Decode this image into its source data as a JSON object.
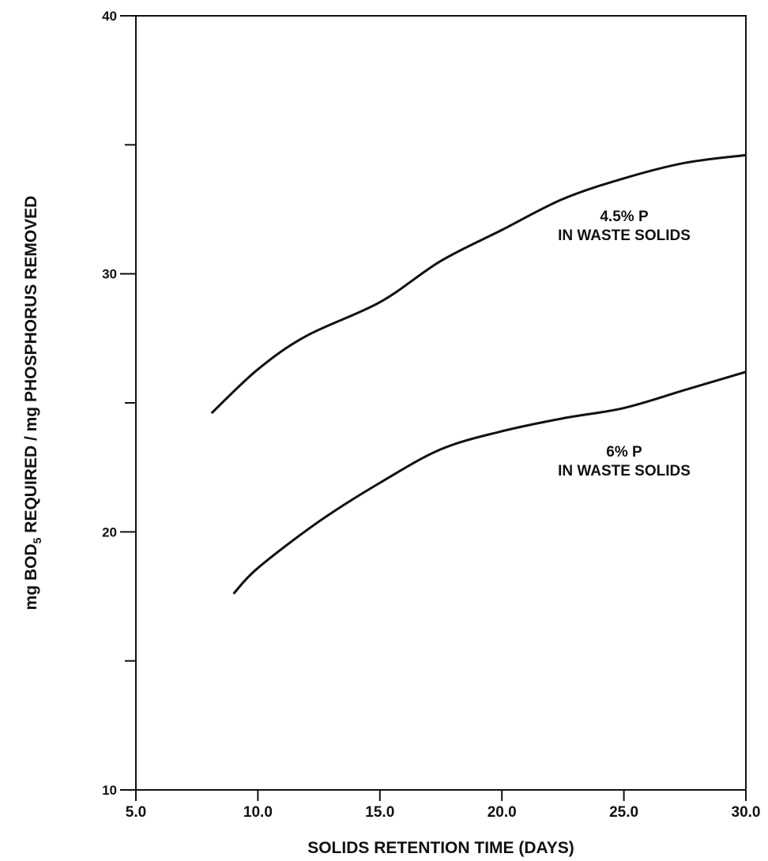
{
  "chart_data": {
    "type": "line",
    "x_label": "SOLIDS RETENTION TIME (DAYS)",
    "y_label_parts": [
      "mg BOD",
      "5",
      " REQUIRED / mg PHOSPHORUS REMOVED"
    ],
    "xlim": [
      5,
      30
    ],
    "xticks": [
      {
        "value": 5,
        "label": "5.0"
      },
      {
        "value": 10,
        "label": "10.0"
      },
      {
        "value": 15,
        "label": "15.0"
      },
      {
        "value": 20,
        "label": "20.0"
      },
      {
        "value": 25,
        "label": "25.0"
      },
      {
        "value": 30,
        "label": "30.0"
      }
    ],
    "ylim": [
      10,
      40
    ],
    "yticks": [
      10,
      20,
      30,
      40
    ],
    "yminorticks": [
      15,
      25,
      35
    ],
    "series": [
      {
        "name": "4.5% P",
        "label_lines": [
          "4.5% P",
          "IN WASTE SOLIDS"
        ],
        "color": "#111111",
        "x": [
          8.1,
          10,
          12,
          15,
          17.5,
          20,
          22.5,
          25,
          27.5,
          30
        ],
        "values": [
          24.6,
          26.3,
          27.6,
          28.9,
          30.5,
          31.7,
          32.9,
          33.7,
          34.3,
          34.6
        ]
      },
      {
        "name": "6% P",
        "label_lines": [
          "6% P",
          "IN WASTE SOLIDS"
        ],
        "color": "#111111",
        "x": [
          9,
          10,
          12.5,
          15,
          17.5,
          20,
          22.5,
          25,
          27.5,
          30
        ],
        "values": [
          17.6,
          18.6,
          20.4,
          21.9,
          23.2,
          23.9,
          24.4,
          24.8,
          25.5,
          26.2
        ]
      }
    ]
  }
}
